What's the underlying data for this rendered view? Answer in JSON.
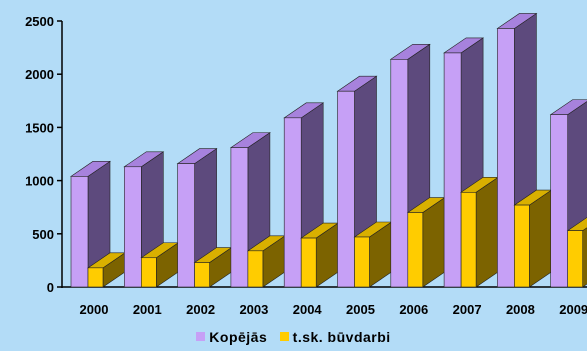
{
  "chart_data": {
    "type": "bar",
    "categories": [
      "2000",
      "2001",
      "2002",
      "2003",
      "2004",
      "2005",
      "2006",
      "2007",
      "2008",
      "2009"
    ],
    "series": [
      {
        "name": "Kopējās",
        "values": [
          1040,
          1130,
          1160,
          1310,
          1590,
          1840,
          2140,
          2200,
          2430,
          1620
        ]
      },
      {
        "name": "t.sk. būvdarbi",
        "values": [
          180,
          275,
          230,
          340,
          460,
          470,
          700,
          890,
          770,
          530
        ]
      }
    ],
    "y_ticks": [
      "0",
      "500",
      "1000",
      "1500",
      "2000",
      "2500"
    ],
    "ylim": [
      0,
      2500
    ],
    "grid": false,
    "legend_position": "bottom",
    "colors": {
      "series1_front": "#c6a0f6",
      "series1_side": "#5d4a7d",
      "series1_top": "#a782dd",
      "series2_front": "#ffcc00",
      "series2_side": "#7c6300",
      "series2_top": "#d9b000",
      "background": "#b3dcf7"
    }
  }
}
